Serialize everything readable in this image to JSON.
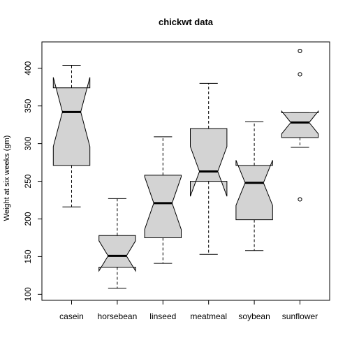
{
  "chart_data": {
    "type": "boxplot",
    "title": "chickwt data",
    "xlabel": "",
    "ylabel": "Weight at six weeks (gm)",
    "ylim": [
      92,
      435
    ],
    "yticks": [
      100,
      150,
      200,
      250,
      300,
      350,
      400
    ],
    "notched": true,
    "box_color": "#d3d3d3",
    "categories": [
      "casein",
      "horsebean",
      "linseed",
      "meatmeal",
      "soybean",
      "sunflower"
    ],
    "boxes": [
      {
        "category": "casein",
        "whisker_low": 216,
        "q1": 271,
        "median": 342,
        "q3": 374,
        "whisker_high": 404,
        "notch_low": 296,
        "notch_high": 388,
        "outliers": []
      },
      {
        "category": "horsebean",
        "whisker_low": 108,
        "q1": 136,
        "median": 151,
        "q3": 178,
        "whisker_high": 227,
        "notch_low": 131,
        "notch_high": 171,
        "outliers": []
      },
      {
        "category": "linseed",
        "whisker_low": 141,
        "q1": 175,
        "median": 221,
        "q3": 258,
        "whisker_high": 309,
        "notch_low": 186,
        "notch_high": 256,
        "outliers": []
      },
      {
        "category": "meatmeal",
        "whisker_low": 153,
        "q1": 250,
        "median": 263,
        "q3": 320,
        "whisker_high": 380,
        "notch_low": 230,
        "notch_high": 296,
        "outliers": []
      },
      {
        "category": "soybean",
        "whisker_low": 158,
        "q1": 199,
        "median": 248,
        "q3": 271,
        "whisker_high": 329,
        "notch_low": 218,
        "notch_high": 278,
        "outliers": []
      },
      {
        "category": "sunflower",
        "whisker_low": 295,
        "q1": 308,
        "median": 328,
        "q3": 341,
        "whisker_high": 341,
        "notch_low": 313,
        "notch_high": 343,
        "outliers": [
          423,
          392,
          226
        ]
      }
    ]
  }
}
